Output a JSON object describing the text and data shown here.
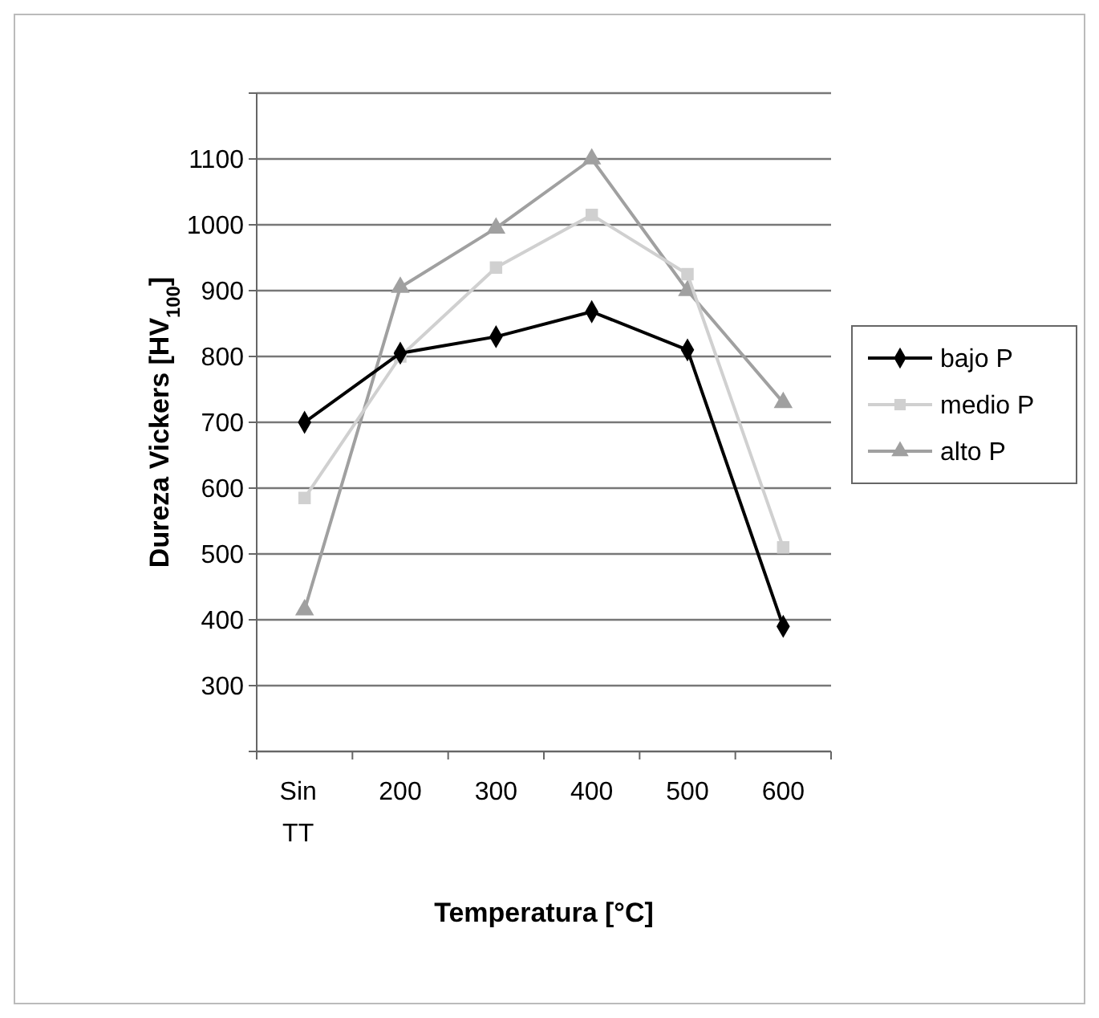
{
  "chart_data": {
    "type": "line",
    "xlabel": "Temperatura [°C]",
    "ylabel": "Dureza Vickers [HV$_{100}$]",
    "categories": [
      "Sin TT",
      "200",
      "300",
      "400",
      "500",
      "600"
    ],
    "ylim": [
      200,
      1200
    ],
    "yticks": [
      {
        "value": 200,
        "label": null
      },
      300,
      400,
      500,
      600,
      700,
      800,
      900,
      1000,
      1100,
      {
        "value": 1200,
        "label": null
      }
    ],
    "grid": "y",
    "legend": "right",
    "series": [
      {
        "name": "bajo P",
        "color": "#000000",
        "marker": "diamond",
        "values": [
          700,
          805,
          830,
          868,
          810,
          390
        ]
      },
      {
        "name": "medio P",
        "color": "#d0d0d0",
        "marker": "square",
        "values": [
          585,
          800,
          935,
          1015,
          925,
          510
        ]
      },
      {
        "name": "alto P",
        "color": "#a0a0a0",
        "marker": "triangle",
        "values": [
          415,
          905,
          995,
          1100,
          900,
          730
        ]
      }
    ]
  }
}
